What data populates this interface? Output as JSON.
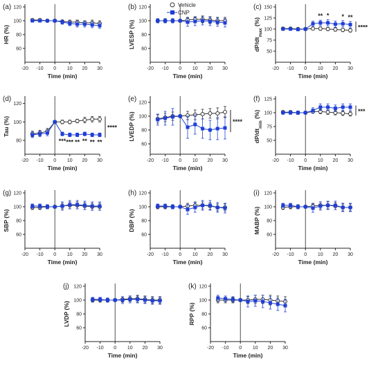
{
  "legend": {
    "entries": [
      {
        "label": "Vehicle",
        "marker": "open-circle",
        "color": "#333333"
      },
      {
        "label": "CNP",
        "marker": "filled-square",
        "color": "#1f3fd6"
      }
    ],
    "placement": "top-center"
  },
  "colors": {
    "vehicle": "#333333",
    "cnp": "#1f3fd6"
  },
  "chart_data": [
    {
      "panel": "(a)",
      "type": "line",
      "ylabel": "HR (%)",
      "xlabel": "Time (min)",
      "ylim": [
        40,
        120
      ],
      "yticks": [
        60,
        80,
        100,
        120
      ],
      "xticks": [
        -20,
        -10,
        0,
        10,
        20,
        30
      ],
      "xlim": [
        -20,
        30
      ],
      "x": [
        -15,
        -10,
        -5,
        0,
        5,
        10,
        15,
        20,
        25,
        30
      ],
      "series": [
        {
          "name": "Vehicle",
          "values": [
            101,
            101,
            100,
            100,
            99,
            98,
            98,
            97,
            97,
            96
          ],
          "err": [
            2,
            2,
            2,
            0,
            2,
            3,
            3,
            3,
            4,
            4
          ]
        },
        {
          "name": "CNP",
          "values": [
            100,
            100,
            100,
            100,
            98,
            96,
            95,
            95,
            94,
            93
          ],
          "err": [
            2,
            2,
            2,
            0,
            3,
            3,
            4,
            4,
            4,
            4
          ]
        }
      ],
      "stars": [],
      "bracket": ""
    },
    {
      "panel": "(b)",
      "type": "line",
      "ylabel": "LVESP (%)",
      "xlabel": "Time (min)",
      "ylim": [
        40,
        120
      ],
      "yticks": [
        60,
        80,
        100,
        120
      ],
      "xticks": [
        -20,
        -10,
        0,
        10,
        20,
        30
      ],
      "xlim": [
        -20,
        30
      ],
      "x": [
        -15,
        -10,
        -5,
        0,
        5,
        10,
        15,
        20,
        25,
        30
      ],
      "series": [
        {
          "name": "Vehicle",
          "values": [
            100,
            100,
            100,
            100,
            101,
            102,
            102,
            101,
            100,
            100
          ],
          "err": [
            3,
            3,
            3,
            0,
            4,
            4,
            5,
            5,
            5,
            5
          ]
        },
        {
          "name": "CNP",
          "values": [
            100,
            100,
            100,
            100,
            98,
            99,
            100,
            99,
            98,
            97
          ],
          "err": [
            3,
            3,
            3,
            0,
            6,
            6,
            6,
            6,
            6,
            6
          ]
        }
      ],
      "stars": [],
      "bracket": ""
    },
    {
      "panel": "(c)",
      "type": "line",
      "ylabel": "dP/dtmax (%)",
      "xlabel": "Time (min)",
      "ylim": [
        25,
        150
      ],
      "yticks": [
        50,
        75,
        100,
        125,
        150
      ],
      "xticks": [
        -20,
        -10,
        0,
        10,
        20,
        30
      ],
      "xlim": [
        -20,
        30
      ],
      "x": [
        -15,
        -10,
        -5,
        0,
        5,
        10,
        15,
        20,
        25,
        30
      ],
      "series": [
        {
          "name": "Vehicle",
          "values": [
            101,
            101,
            100,
            100,
            101,
            101,
            100,
            99,
            98,
            97
          ],
          "err": [
            3,
            3,
            3,
            0,
            3,
            4,
            4,
            4,
            4,
            4
          ]
        },
        {
          "name": "CNP",
          "values": [
            100,
            100,
            99,
            100,
            112,
            114,
            114,
            111,
            112,
            110
          ],
          "err": [
            3,
            3,
            3,
            0,
            6,
            6,
            7,
            7,
            7,
            7
          ]
        }
      ],
      "stars": [
        {
          "x": 10,
          "text": "**"
        },
        {
          "x": 15,
          "text": "*"
        },
        {
          "x": 25,
          "text": "*"
        },
        {
          "x": 30,
          "text": "**"
        }
      ],
      "bracket": "****"
    },
    {
      "panel": "(d)",
      "type": "line",
      "ylabel": "Tau (%)",
      "xlabel": "Time (min)",
      "ylim": [
        65,
        125
      ],
      "yticks": [
        80,
        100,
        120
      ],
      "xticks": [
        -20,
        -10,
        0,
        10,
        20,
        30
      ],
      "xlim": [
        -20,
        30
      ],
      "x": [
        -15,
        -10,
        -5,
        0,
        5,
        10,
        15,
        20,
        25,
        30
      ],
      "series": [
        {
          "name": "Vehicle",
          "values": [
            87,
            88,
            90,
            100,
            100,
            100,
            101,
            102,
            103,
            103
          ],
          "err": [
            3,
            3,
            3,
            0,
            2,
            2,
            2,
            3,
            3,
            3
          ]
        },
        {
          "name": "CNP",
          "values": [
            86,
            87,
            88,
            100,
            87,
            86,
            86,
            87,
            86,
            86
          ],
          "err": [
            3,
            3,
            3,
            0,
            2,
            2,
            2,
            2,
            2,
            2
          ]
        }
      ],
      "stars": [
        {
          "x": 5,
          "text": "***"
        },
        {
          "x": 10,
          "text": "***"
        },
        {
          "x": 15,
          "text": "**"
        },
        {
          "x": 20,
          "text": "**"
        },
        {
          "x": 25,
          "text": "**"
        },
        {
          "x": 30,
          "text": "**"
        }
      ],
      "bracket": "****"
    },
    {
      "panel": "(e)",
      "type": "line",
      "ylabel": "LVEDP (%)",
      "xlabel": "Time (min)",
      "ylim": [
        45,
        125
      ],
      "yticks": [
        60,
        80,
        100,
        120
      ],
      "xticks": [
        -20,
        -10,
        0,
        10,
        20,
        30
      ],
      "xlim": [
        -20,
        30
      ],
      "x": [
        -15,
        -10,
        -5,
        0,
        5,
        10,
        15,
        20,
        25,
        30
      ],
      "series": [
        {
          "name": "Vehicle",
          "values": [
            96,
            98,
            100,
            100,
            101,
            102,
            103,
            104,
            104,
            106
          ],
          "err": [
            6,
            6,
            6,
            0,
            6,
            7,
            7,
            7,
            8,
            8
          ]
        },
        {
          "name": "CNP",
          "values": [
            95,
            97,
            99,
            100,
            84,
            88,
            82,
            80,
            82,
            83
          ],
          "err": [
            8,
            10,
            12,
            0,
            16,
            14,
            14,
            14,
            16,
            16
          ]
        }
      ],
      "stars": [],
      "bracket": "****"
    },
    {
      "panel": "(f)",
      "type": "line",
      "ylabel": "dP/dtmin (%)",
      "xlabel": "Time (min)",
      "ylim": [
        25,
        125
      ],
      "yticks": [
        50,
        75,
        100,
        125
      ],
      "xticks": [
        -20,
        -10,
        0,
        10,
        20,
        30
      ],
      "xlim": [
        -20,
        30
      ],
      "x": [
        -15,
        -10,
        -5,
        0,
        5,
        10,
        15,
        20,
        25,
        30
      ],
      "series": [
        {
          "name": "Vehicle",
          "values": [
            101,
            101,
            100,
            100,
            102,
            102,
            101,
            100,
            99,
            98
          ],
          "err": [
            3,
            3,
            3,
            0,
            3,
            4,
            4,
            4,
            4,
            4
          ]
        },
        {
          "name": "CNP",
          "values": [
            100,
            100,
            100,
            100,
            104,
            110,
            110,
            108,
            110,
            110
          ],
          "err": [
            3,
            3,
            3,
            0,
            5,
            6,
            6,
            6,
            6,
            6
          ]
        }
      ],
      "stars": [],
      "bracket": "***"
    },
    {
      "panel": "(g)",
      "type": "line",
      "ylabel": "SBP (%)",
      "xlabel": "Time (min)",
      "ylim": [
        40,
        120
      ],
      "yticks": [
        60,
        80,
        100,
        120
      ],
      "xticks": [
        -20,
        -10,
        0,
        10,
        20,
        30
      ],
      "xlim": [
        -20,
        30
      ],
      "x": [
        -15,
        -10,
        -5,
        0,
        5,
        10,
        15,
        20,
        25,
        30
      ],
      "series": [
        {
          "name": "Vehicle",
          "values": [
            99,
            99,
            100,
            100,
            101,
            102,
            102,
            101,
            100,
            100
          ],
          "err": [
            3,
            3,
            3,
            0,
            4,
            5,
            5,
            5,
            5,
            5
          ]
        },
        {
          "name": "CNP",
          "values": [
            101,
            101,
            100,
            100,
            101,
            103,
            103,
            102,
            101,
            101
          ],
          "err": [
            3,
            3,
            3,
            0,
            6,
            6,
            6,
            6,
            6,
            6
          ]
        }
      ],
      "stars": [],
      "bracket": ""
    },
    {
      "panel": "(h)",
      "type": "line",
      "ylabel": "DBP (%)",
      "xlabel": "Time (min)",
      "ylim": [
        40,
        120
      ],
      "yticks": [
        60,
        80,
        100,
        120
      ],
      "xticks": [
        -20,
        -10,
        0,
        10,
        20,
        30
      ],
      "xlim": [
        -20,
        30
      ],
      "x": [
        -15,
        -10,
        -5,
        0,
        5,
        10,
        15,
        20,
        25,
        30
      ],
      "series": [
        {
          "name": "Vehicle",
          "values": [
            100,
            100,
            100,
            100,
            101,
            102,
            102,
            101,
            99,
            99
          ],
          "err": [
            3,
            3,
            3,
            0,
            4,
            5,
            5,
            5,
            5,
            5
          ]
        },
        {
          "name": "CNP",
          "values": [
            101,
            101,
            100,
            100,
            96,
            99,
            102,
            102,
            99,
            98
          ],
          "err": [
            3,
            3,
            3,
            0,
            7,
            7,
            7,
            7,
            7,
            7
          ]
        }
      ],
      "stars": [],
      "bracket": ""
    },
    {
      "panel": "(i)",
      "type": "line",
      "ylabel": "MABP (%)",
      "xlabel": "Time (min)",
      "ylim": [
        40,
        120
      ],
      "yticks": [
        60,
        80,
        100,
        120
      ],
      "xticks": [
        -20,
        -10,
        0,
        10,
        20,
        30
      ],
      "xlim": [
        -20,
        30
      ],
      "x": [
        -15,
        -10,
        -5,
        0,
        5,
        10,
        15,
        20,
        25,
        30
      ],
      "series": [
        {
          "name": "Vehicle",
          "values": [
            99,
            100,
            100,
            100,
            101,
            102,
            102,
            101,
            99,
            99
          ],
          "err": [
            3,
            3,
            3,
            0,
            4,
            5,
            5,
            5,
            5,
            5
          ]
        },
        {
          "name": "CNP",
          "values": [
            102,
            102,
            100,
            100,
            98,
            101,
            102,
            102,
            99,
            99
          ],
          "err": [
            3,
            3,
            3,
            0,
            6,
            6,
            6,
            6,
            6,
            6
          ]
        }
      ],
      "stars": [],
      "bracket": ""
    },
    {
      "panel": "(j)",
      "type": "line",
      "ylabel": "LVDP (%)",
      "xlabel": "Time (min)",
      "ylim": [
        40,
        120
      ],
      "yticks": [
        60,
        80,
        100,
        120
      ],
      "xticks": [
        -20,
        -10,
        0,
        10,
        20,
        30
      ],
      "xlim": [
        -20,
        30
      ],
      "x": [
        -15,
        -10,
        -5,
        0,
        5,
        10,
        15,
        20,
        25,
        30
      ],
      "series": [
        {
          "name": "Vehicle",
          "values": [
            100,
            100,
            100,
            100,
            101,
            102,
            102,
            101,
            100,
            100
          ],
          "err": [
            3,
            3,
            3,
            0,
            4,
            4,
            5,
            5,
            5,
            5
          ]
        },
        {
          "name": "CNP",
          "values": [
            101,
            101,
            100,
            100,
            100,
            101,
            101,
            100,
            99,
            99
          ],
          "err": [
            3,
            3,
            3,
            0,
            5,
            5,
            5,
            5,
            5,
            5
          ]
        }
      ],
      "stars": [],
      "bracket": ""
    },
    {
      "panel": "(k)",
      "type": "line",
      "ylabel": "RPP (%)",
      "xlabel": "Time (min)",
      "ylim": [
        40,
        120
      ],
      "yticks": [
        60,
        80,
        100,
        120
      ],
      "xticks": [
        -20,
        -10,
        0,
        10,
        20,
        30
      ],
      "xlim": [
        -20,
        30
      ],
      "x": [
        -15,
        -10,
        -5,
        0,
        5,
        10,
        15,
        20,
        25,
        30
      ],
      "series": [
        {
          "name": "Vehicle",
          "values": [
            100,
            100,
            100,
            100,
            100,
            101,
            101,
            100,
            99,
            98
          ],
          "err": [
            4,
            4,
            4,
            0,
            5,
            6,
            6,
            7,
            7,
            7
          ]
        },
        {
          "name": "CNP",
          "values": [
            103,
            102,
            101,
            100,
            98,
            99,
            98,
            96,
            94,
            92
          ],
          "err": [
            4,
            4,
            4,
            0,
            8,
            8,
            9,
            9,
            9,
            9
          ]
        }
      ],
      "stars": [],
      "bracket": ""
    }
  ]
}
